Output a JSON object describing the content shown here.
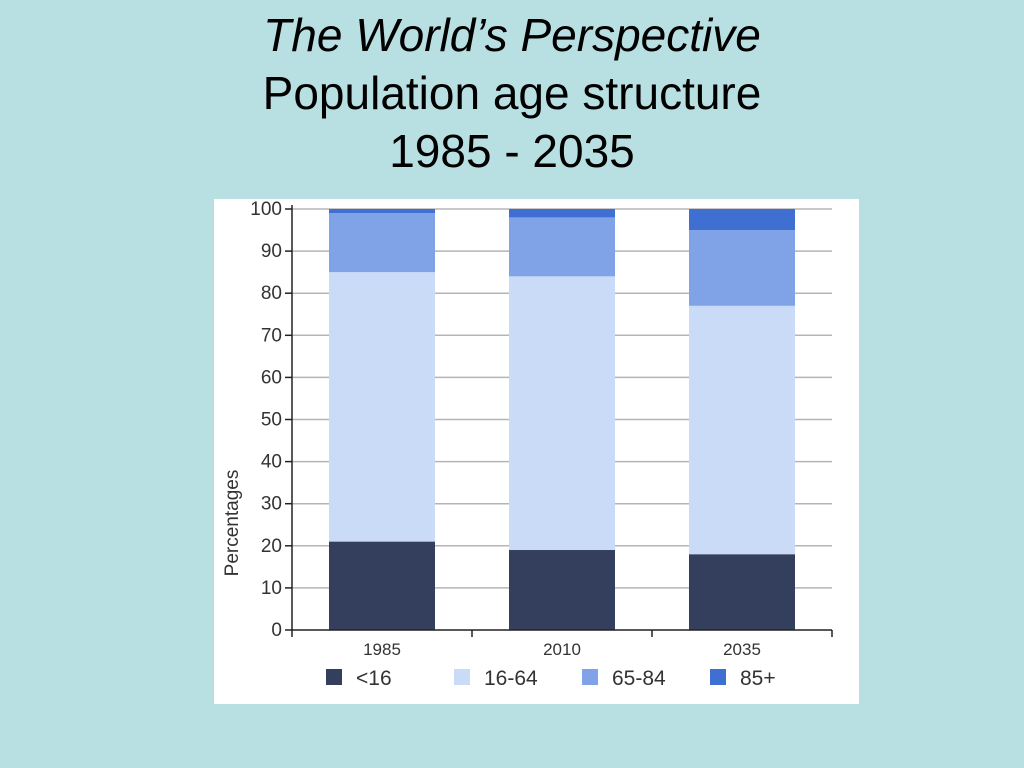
{
  "slide": {
    "title_line1": "The World’s Perspective",
    "title_line2": "Population age structure",
    "title_line3": "1985 - 2035"
  },
  "chart_data": {
    "type": "bar",
    "stacked": true,
    "categories": [
      "1985",
      "2010",
      "2035"
    ],
    "series": [
      {
        "name": "<16",
        "color": "#333f5c",
        "values": [
          21,
          19,
          18
        ]
      },
      {
        "name": "16-64",
        "color": "#c9dbf7",
        "values": [
          64,
          65,
          59
        ]
      },
      {
        "name": "65-84",
        "color": "#7fa3e6",
        "values": [
          14,
          14,
          18
        ]
      },
      {
        "name": "85+",
        "color": "#3f6fd0",
        "values": [
          1,
          2,
          5
        ]
      }
    ],
    "title": "",
    "xlabel": "",
    "ylabel": "Percentages",
    "ylim": [
      0,
      100
    ],
    "yticks": [
      "0",
      "10",
      "20",
      "30",
      "40",
      "50",
      "60",
      "70",
      "80",
      "90",
      "100"
    ],
    "grid": true,
    "legend_position": "bottom"
  }
}
